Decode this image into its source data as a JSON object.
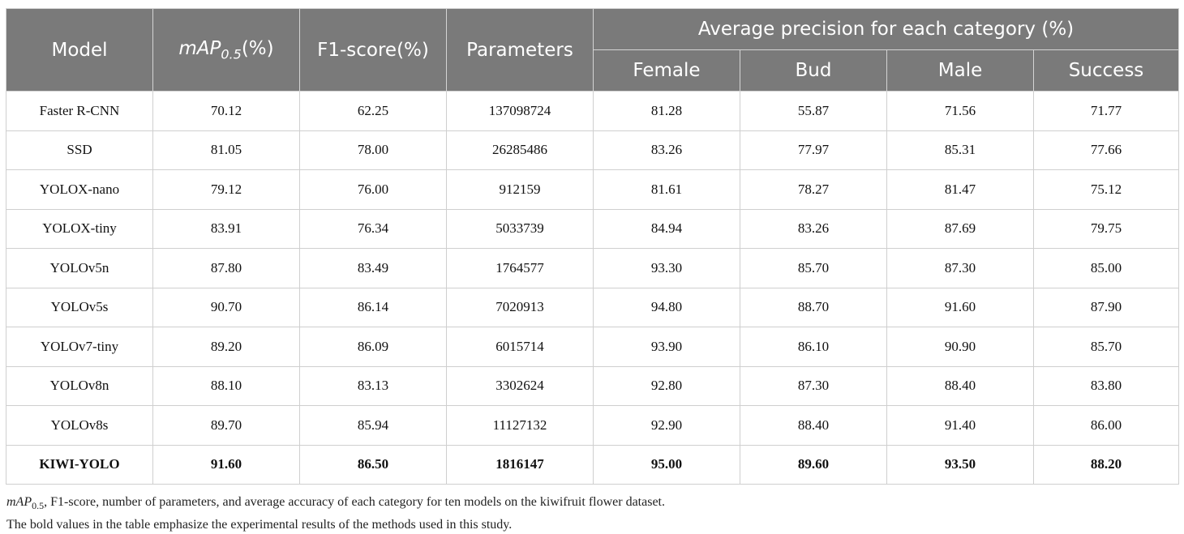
{
  "header": {
    "model": "Model",
    "map_main": "mAP",
    "map_sub": "0.5",
    "map_suffix": "(%)",
    "f1": "F1-score(%)",
    "params": "Parameters",
    "avg_group": "Average precision for each category (%)",
    "female": "Female",
    "bud": "Bud",
    "male": "Male",
    "success": "Success"
  },
  "rows": [
    {
      "model": "Faster R-CNN",
      "map": "70.12",
      "f1": "62.25",
      "params": "137098724",
      "female": "81.28",
      "bud": "55.87",
      "male": "71.56",
      "success": "71.77"
    },
    {
      "model": "SSD",
      "map": "81.05",
      "f1": "78.00",
      "params": "26285486",
      "female": "83.26",
      "bud": "77.97",
      "male": "85.31",
      "success": "77.66"
    },
    {
      "model": "YOLOX-nano",
      "map": "79.12",
      "f1": "76.00",
      "params": "912159",
      "female": "81.61",
      "bud": "78.27",
      "male": "81.47",
      "success": "75.12"
    },
    {
      "model": "YOLOX-tiny",
      "map": "83.91",
      "f1": "76.34",
      "params": "5033739",
      "female": "84.94",
      "bud": "83.26",
      "male": "87.69",
      "success": "79.75"
    },
    {
      "model": "YOLOv5n",
      "map": "87.80",
      "f1": "83.49",
      "params": "1764577",
      "female": "93.30",
      "bud": "85.70",
      "male": "87.30",
      "success": "85.00"
    },
    {
      "model": "YOLOv5s",
      "map": "90.70",
      "f1": "86.14",
      "params": "7020913",
      "female": "94.80",
      "bud": "88.70",
      "male": "91.60",
      "success": "87.90"
    },
    {
      "model": "YOLOv7-tiny",
      "map": "89.20",
      "f1": "86.09",
      "params": "6015714",
      "female": "93.90",
      "bud": "86.10",
      "male": "90.90",
      "success": "85.70"
    },
    {
      "model": "YOLOv8n",
      "map": "88.10",
      "f1": "83.13",
      "params": "3302624",
      "female": "92.80",
      "bud": "87.30",
      "male": "88.40",
      "success": "83.80"
    },
    {
      "model": "YOLOv8s",
      "map": "89.70",
      "f1": "85.94",
      "params": "11127132",
      "female": "92.90",
      "bud": "88.40",
      "male": "91.40",
      "success": "86.00"
    },
    {
      "model": "KIWI-YOLO",
      "map": "91.60",
      "f1": "86.50",
      "params": "1816147",
      "female": "95.00",
      "bud": "89.60",
      "male": "93.50",
      "success": "88.20"
    }
  ],
  "notes": {
    "line1_main": "mAP",
    "line1_sub": "0.5",
    "line1_rest": ", F1-score, number of parameters, and average accuracy of each category for ten models on the kiwifruit flower dataset.",
    "line2": "The bold values in the table emphasize the experimental results of the methods used in this study."
  },
  "colors": {
    "header_bg": "#7a7a7a",
    "header_text": "#ffffff",
    "border": "#cfcfcf"
  }
}
